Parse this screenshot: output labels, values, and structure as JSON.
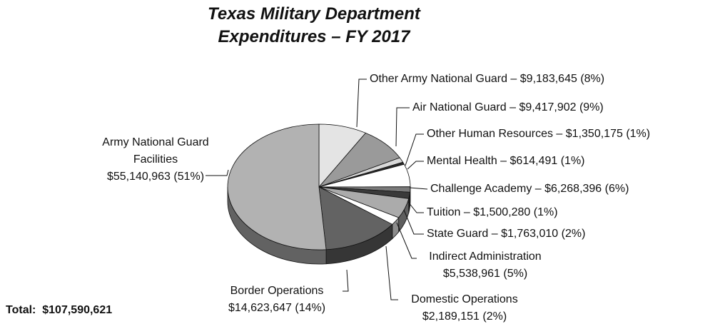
{
  "chart_data": {
    "type": "pie3d",
    "title": "Texas Military Department Expenditures – FY 2017",
    "separator": "–",
    "categories": [
      "Other Army National Guard",
      "Air National Guard",
      "Other Human Resources",
      "Mental Health",
      "Challenge Academy",
      "Tuition",
      "State Guard",
      "Indirect Administration",
      "Domestic Operations",
      "Border Operations",
      "Army National Guard Facilities"
    ],
    "values": [
      9183645,
      9417902,
      1350175,
      614491,
      6268396,
      1500280,
      1763010,
      5538961,
      2189151,
      14623647,
      55140963
    ],
    "value_labels": [
      "$9,183,645",
      "$9,417,902",
      "$1,350,175",
      "$614,491",
      "$6,268,396",
      "$1,500,280",
      "$1,763,010",
      "$5,538,961",
      "$2,189,151",
      "$14,623,647",
      "$55,140,963"
    ],
    "percent_labels": [
      "(8%)",
      "(9%)",
      "(1%)",
      "(1%)",
      "(6%)",
      "(1%)",
      "(2%)",
      "(5%)",
      "(2%)",
      "(14%)",
      "(51%)"
    ],
    "colors": [
      "#e4e4e4",
      "#9a9a9a",
      "#d8d8d8",
      "#2a2a2a",
      "#ffffff",
      "#7a7a7a",
      "#3a3a3a",
      "#ababab",
      "#ffffff",
      "#636363",
      "#b2b2b2"
    ],
    "annotations": [
      "Total:  $107,590,621"
    ]
  }
}
